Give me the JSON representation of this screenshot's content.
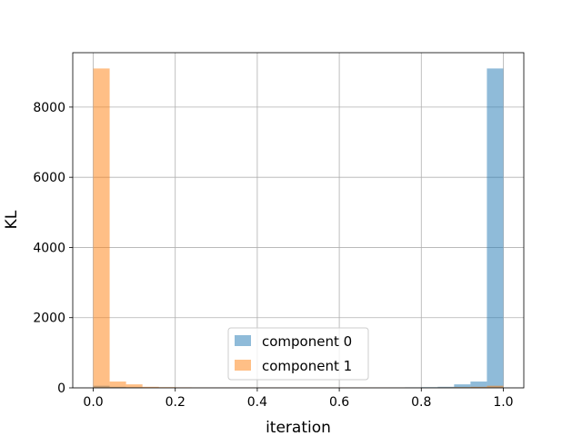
{
  "chart_data": {
    "type": "bar",
    "subtype": "histogram-overlay",
    "title": "",
    "xlabel": "iteration",
    "ylabel": "KL",
    "xlim": [
      -0.05,
      1.05
    ],
    "ylim": [
      0,
      9550
    ],
    "xticks": [
      "0.0",
      "0.2",
      "0.4",
      "0.6",
      "0.8",
      "1.0"
    ],
    "yticks": [
      "0",
      "2000",
      "4000",
      "6000",
      "8000"
    ],
    "bin_edges": [
      0.0,
      0.04,
      0.08,
      0.12,
      0.16,
      0.2,
      0.24,
      0.28,
      0.32,
      0.36,
      0.4,
      0.44,
      0.48,
      0.52,
      0.56,
      0.6,
      0.64,
      0.68,
      0.72,
      0.76,
      0.8,
      0.84,
      0.88,
      0.92,
      0.96,
      1.0
    ],
    "series": [
      {
        "name": "component 0",
        "color": "#1f77b4",
        "alpha": 0.5,
        "values": [
          60,
          30,
          20,
          15,
          12,
          10,
          10,
          10,
          10,
          10,
          10,
          10,
          10,
          10,
          10,
          10,
          10,
          10,
          12,
          15,
          20,
          30,
          100,
          180,
          9100
        ]
      },
      {
        "name": "component 1",
        "color": "#ff7f0e",
        "alpha": 0.5,
        "values": [
          9100,
          180,
          100,
          30,
          20,
          15,
          12,
          10,
          10,
          10,
          10,
          10,
          10,
          10,
          10,
          10,
          10,
          10,
          10,
          10,
          12,
          15,
          20,
          30,
          60
        ]
      }
    ],
    "grid": true,
    "legend": "lower-center"
  }
}
